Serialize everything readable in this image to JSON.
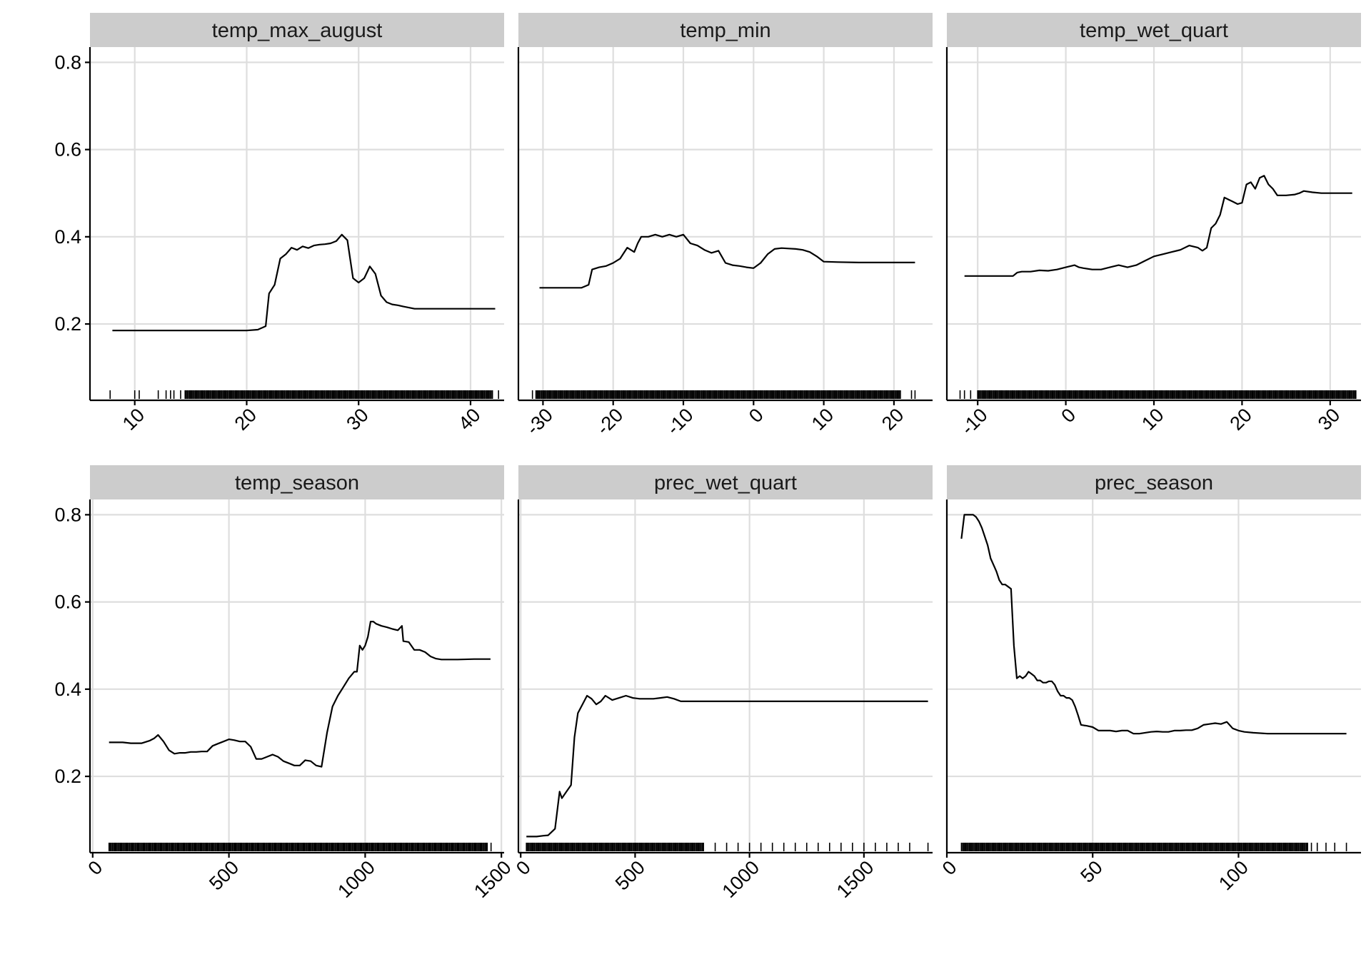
{
  "chart_data": [
    {
      "type": "line",
      "title": "temp_max_august",
      "xlim": [
        6,
        43
      ],
      "ylim": [
        0.025,
        0.835
      ],
      "xticks": [
        10,
        20,
        30,
        40
      ],
      "xtick_labels": [
        "10",
        "20",
        "30",
        "40"
      ],
      "yticks": [
        0.2,
        0.4,
        0.6,
        0.8
      ],
      "ytick_labels": [
        "0.2",
        "0.4",
        "0.6",
        "0.8"
      ],
      "x": [
        8,
        12,
        16,
        20,
        21,
        21.7,
        22,
        22.5,
        23,
        23.5,
        24,
        24.5,
        25,
        25.5,
        26,
        26.5,
        27,
        27.5,
        28,
        28.5,
        29,
        29.5,
        30,
        30.5,
        31,
        31.5,
        32,
        32.5,
        33,
        33.5,
        34,
        35,
        38,
        42.2
      ],
      "y": [
        0.185,
        0.185,
        0.185,
        0.185,
        0.187,
        0.195,
        0.27,
        0.29,
        0.35,
        0.36,
        0.375,
        0.37,
        0.378,
        0.374,
        0.38,
        0.382,
        0.383,
        0.385,
        0.39,
        0.405,
        0.392,
        0.305,
        0.295,
        0.305,
        0.332,
        0.315,
        0.265,
        0.25,
        0.245,
        0.243,
        0.24,
        0.235,
        0.235,
        0.235
      ],
      "rug": {
        "dense": [
          14.5,
          42
        ],
        "sparse": [
          7.8,
          10,
          10.4,
          12.1,
          12.8,
          13.2,
          13.5,
          14.1,
          42.5
        ]
      }
    },
    {
      "type": "line",
      "title": "temp_min",
      "xlim": [
        -33.5,
        25.5
      ],
      "ylim": [
        0.025,
        0.835
      ],
      "xticks": [
        -30,
        -20,
        -10,
        0,
        10,
        20
      ],
      "xtick_labels": [
        "-30",
        "-20",
        "-10",
        "0",
        "10",
        "20"
      ],
      "yticks": [
        0.2,
        0.4,
        0.6,
        0.8
      ],
      "ytick_labels": [
        "0.2",
        "0.4",
        "0.6",
        "0.8"
      ],
      "x": [
        -30.5,
        -27,
        -24.5,
        -23.5,
        -23,
        -22,
        -21,
        -20,
        -19,
        -18,
        -17,
        -16.5,
        -16,
        -15,
        -14,
        -13,
        -12,
        -11,
        -10,
        -9,
        -8,
        -7,
        -6,
        -5,
        -4,
        -3,
        -2,
        -1,
        0,
        1,
        2,
        3,
        4,
        5,
        6,
        7,
        8,
        9,
        10,
        12,
        15,
        23
      ],
      "y": [
        0.283,
        0.283,
        0.283,
        0.29,
        0.325,
        0.33,
        0.333,
        0.34,
        0.35,
        0.375,
        0.365,
        0.385,
        0.4,
        0.4,
        0.405,
        0.4,
        0.405,
        0.4,
        0.405,
        0.385,
        0.38,
        0.37,
        0.363,
        0.368,
        0.34,
        0.335,
        0.333,
        0.33,
        0.328,
        0.34,
        0.36,
        0.372,
        0.374,
        0.373,
        0.372,
        0.37,
        0.365,
        0.355,
        0.343,
        0.342,
        0.341,
        0.341
      ],
      "rug": {
        "dense": [
          -31,
          21
        ],
        "sparse": [
          -31.5,
          22.5,
          23
        ]
      }
    },
    {
      "type": "line",
      "title": "temp_wet_quart",
      "xlim": [
        -13.5,
        33.5
      ],
      "ylim": [
        0.025,
        0.835
      ],
      "xticks": [
        -10,
        0,
        10,
        20,
        30
      ],
      "xtick_labels": [
        "-10",
        "0",
        "10",
        "20",
        "30"
      ],
      "yticks": [
        0.2,
        0.4,
        0.6,
        0.8
      ],
      "ytick_labels": [
        "0.2",
        "0.4",
        "0.6",
        "0.8"
      ],
      "x": [
        -11.5,
        -8,
        -6,
        -5.5,
        -5,
        -4,
        -3,
        -2,
        -1,
        0,
        1,
        1.5,
        2,
        3,
        4,
        5,
        6,
        7,
        8,
        9,
        10,
        11,
        12,
        13,
        14,
        15,
        15.5,
        16,
        16.5,
        17,
        17.5,
        18,
        18.5,
        19,
        19.5,
        20,
        20.5,
        21,
        21.5,
        22,
        22.5,
        23,
        23.5,
        24,
        25,
        26,
        26.5,
        27,
        28,
        29,
        30,
        31,
        32.5
      ],
      "y": [
        0.31,
        0.31,
        0.31,
        0.318,
        0.32,
        0.32,
        0.323,
        0.322,
        0.325,
        0.33,
        0.335,
        0.33,
        0.328,
        0.325,
        0.325,
        0.33,
        0.335,
        0.33,
        0.335,
        0.345,
        0.355,
        0.36,
        0.365,
        0.37,
        0.38,
        0.375,
        0.368,
        0.375,
        0.42,
        0.43,
        0.45,
        0.49,
        0.485,
        0.48,
        0.475,
        0.478,
        0.52,
        0.525,
        0.51,
        0.535,
        0.54,
        0.52,
        0.51,
        0.495,
        0.495,
        0.497,
        0.5,
        0.505,
        0.502,
        0.5,
        0.5,
        0.5,
        0.5
      ],
      "rug": {
        "dense": [
          -10,
          33
        ],
        "sparse": [
          -12,
          -11.5,
          -10.8
        ]
      }
    },
    {
      "type": "line",
      "title": "temp_season",
      "xlim": [
        -10,
        1510
      ],
      "ylim": [
        0.025,
        0.835
      ],
      "xticks": [
        0,
        500,
        1000,
        1500
      ],
      "xtick_labels": [
        "0",
        "500",
        "1000",
        "1500"
      ],
      "yticks": [
        0.2,
        0.4,
        0.6,
        0.8
      ],
      "ytick_labels": [
        "0.2",
        "0.4",
        "0.6",
        "0.8"
      ],
      "x": [
        60,
        110,
        140,
        180,
        210,
        225,
        240,
        260,
        280,
        300,
        320,
        340,
        360,
        380,
        400,
        420,
        440,
        460,
        480,
        500,
        520,
        540,
        560,
        580,
        600,
        620,
        640,
        660,
        680,
        700,
        720,
        740,
        760,
        780,
        800,
        820,
        840,
        860,
        870,
        880,
        900,
        920,
        940,
        960,
        970,
        980,
        990,
        1000,
        1010,
        1020,
        1030,
        1040,
        1060,
        1080,
        1100,
        1120,
        1135,
        1140,
        1160,
        1180,
        1200,
        1220,
        1240,
        1260,
        1280,
        1300,
        1340,
        1400,
        1460
      ],
      "y": [
        0.278,
        0.278,
        0.276,
        0.276,
        0.282,
        0.287,
        0.295,
        0.28,
        0.26,
        0.252,
        0.254,
        0.254,
        0.256,
        0.256,
        0.257,
        0.257,
        0.27,
        0.275,
        0.28,
        0.285,
        0.283,
        0.28,
        0.28,
        0.268,
        0.24,
        0.24,
        0.245,
        0.25,
        0.245,
        0.235,
        0.23,
        0.225,
        0.225,
        0.237,
        0.235,
        0.225,
        0.222,
        0.3,
        0.33,
        0.36,
        0.385,
        0.405,
        0.425,
        0.44,
        0.44,
        0.5,
        0.49,
        0.5,
        0.52,
        0.555,
        0.555,
        0.55,
        0.545,
        0.542,
        0.538,
        0.535,
        0.545,
        0.51,
        0.508,
        0.49,
        0.49,
        0.485,
        0.475,
        0.47,
        0.468,
        0.468,
        0.468,
        0.469,
        0.469
      ],
      "rug": {
        "dense": [
          60,
          1450
        ],
        "sparse": [
          1462
        ]
      }
    },
    {
      "type": "line",
      "title": "prec_wet_quart",
      "xlim": [
        -10,
        1800
      ],
      "ylim": [
        0.025,
        0.835
      ],
      "xticks": [
        0,
        500,
        1000,
        1500
      ],
      "xtick_labels": [
        "0",
        "500",
        "1000",
        "1500"
      ],
      "yticks": [
        0.2,
        0.4,
        0.6,
        0.8
      ],
      "ytick_labels": [
        "0.2",
        "0.4",
        "0.6",
        "0.8"
      ],
      "x": [
        25,
        70,
        100,
        120,
        150,
        170,
        180,
        200,
        220,
        235,
        250,
        270,
        290,
        310,
        330,
        350,
        370,
        400,
        430,
        460,
        490,
        520,
        550,
        580,
        610,
        640,
        670,
        700,
        800,
        1000,
        1200,
        1400,
        1600,
        1780
      ],
      "y": [
        0.062,
        0.062,
        0.064,
        0.065,
        0.08,
        0.165,
        0.15,
        0.165,
        0.18,
        0.29,
        0.345,
        0.365,
        0.385,
        0.378,
        0.365,
        0.372,
        0.385,
        0.375,
        0.38,
        0.385,
        0.38,
        0.378,
        0.378,
        0.378,
        0.38,
        0.382,
        0.378,
        0.372,
        0.372,
        0.372,
        0.372,
        0.372,
        0.372,
        0.372
      ],
      "rug": {
        "dense": [
          25,
          800
        ],
        "sparse": [
          850,
          900,
          950,
          1000,
          1050,
          1100,
          1150,
          1200,
          1250,
          1300,
          1350,
          1400,
          1450,
          1500,
          1550,
          1600,
          1650,
          1700,
          1780
        ]
      }
    },
    {
      "type": "line",
      "title": "prec_season",
      "xlim": [
        0,
        142
      ],
      "ylim": [
        0.025,
        0.835
      ],
      "xticks": [
        0,
        50,
        100
      ],
      "xtick_labels": [
        "0",
        "50",
        "100"
      ],
      "yticks": [
        0.2,
        0.4,
        0.6,
        0.8
      ],
      "ytick_labels": [
        "0.2",
        "0.4",
        "0.6",
        "0.8"
      ],
      "x": [
        5,
        6,
        7,
        8,
        9,
        10,
        11,
        12,
        13,
        14,
        15,
        16,
        17,
        18,
        19,
        20,
        21,
        22,
        23,
        24,
        25,
        26,
        27,
        28,
        29,
        30,
        31,
        32,
        33,
        34,
        35,
        36,
        37,
        38,
        39,
        40,
        41,
        42,
        43,
        44,
        45,
        46,
        47,
        48,
        50,
        52,
        54,
        56,
        58,
        60,
        62,
        64,
        66,
        68,
        70,
        72,
        74,
        76,
        78,
        80,
        82,
        84,
        86,
        88,
        90,
        92,
        94,
        96,
        98,
        100,
        102,
        105,
        110,
        120,
        130,
        137
      ],
      "y": [
        0.745,
        0.8,
        0.8,
        0.8,
        0.8,
        0.795,
        0.785,
        0.77,
        0.75,
        0.73,
        0.7,
        0.685,
        0.67,
        0.65,
        0.64,
        0.64,
        0.635,
        0.63,
        0.5,
        0.425,
        0.43,
        0.425,
        0.43,
        0.44,
        0.435,
        0.43,
        0.42,
        0.42,
        0.415,
        0.415,
        0.418,
        0.418,
        0.41,
        0.395,
        0.385,
        0.385,
        0.38,
        0.38,
        0.375,
        0.36,
        0.34,
        0.318,
        0.317,
        0.316,
        0.313,
        0.305,
        0.305,
        0.305,
        0.303,
        0.305,
        0.305,
        0.298,
        0.298,
        0.3,
        0.302,
        0.303,
        0.302,
        0.302,
        0.305,
        0.305,
        0.306,
        0.306,
        0.31,
        0.318,
        0.32,
        0.322,
        0.32,
        0.325,
        0.31,
        0.305,
        0.302,
        0.3,
        0.298,
        0.298,
        0.298,
        0.298
      ],
      "rug": {
        "dense": [
          5,
          124
        ],
        "sparse": [
          125,
          127,
          130,
          133,
          137
        ]
      }
    }
  ]
}
